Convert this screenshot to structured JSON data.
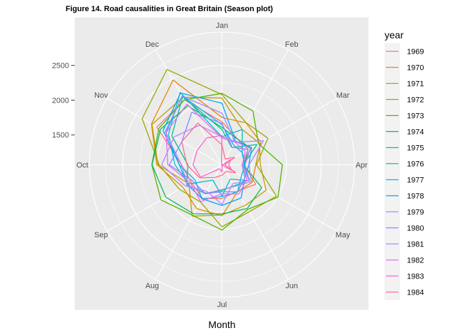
{
  "chart_data": {
    "type": "line",
    "coordinates": "polar",
    "title": "Figure 14. Road causalities in Great Britain (Season plot)",
    "xlabel": "Month",
    "ylabel": "",
    "months": [
      "Jan",
      "Feb",
      "Mar",
      "Apr",
      "May",
      "Jun",
      "Jul",
      "Aug",
      "Sep",
      "Oct",
      "Nov",
      "Dec"
    ],
    "radial_ticks": [
      1500,
      2000,
      2500
    ],
    "rlim": [
      1070,
      2980
    ],
    "legend_title": "year",
    "legend_position": "right",
    "series": [
      {
        "name": "1969",
        "color": "#F8766D",
        "values": [
          1687,
          1508,
          1507,
          1385,
          1632,
          1511,
          1559,
          1630,
          1579,
          1653,
          2152,
          2148
        ]
      },
      {
        "name": "1970",
        "color": "#E38900",
        "values": [
          1752,
          1765,
          1717,
          1558,
          1575,
          1520,
          1805,
          1800,
          1719,
          2008,
          2242,
          2478
        ]
      },
      {
        "name": "1971",
        "color": "#C49A00",
        "values": [
          2030,
          1655,
          1693,
          1623,
          1805,
          1746,
          1795,
          1926,
          1619,
          1992,
          2233,
          2192
        ]
      },
      {
        "name": "1972",
        "color": "#99A800",
        "values": [
          2080,
          1768,
          1835,
          1569,
          1976,
          1853,
          1965,
          1689,
          1778,
          1976,
          2397,
          2654
        ]
      },
      {
        "name": "1973",
        "color": "#53B400",
        "values": [
          2097,
          1963,
          1677,
          1941,
          2003,
          1813,
          2012,
          1912,
          2084,
          2080,
          2118,
          2150
        ]
      },
      {
        "name": "1974",
        "color": "#00BC56",
        "values": [
          1608,
          1503,
          1548,
          1382,
          1731,
          1798,
          1779,
          1887,
          2004,
          2077,
          2092,
          2051
        ]
      },
      {
        "name": "1975",
        "color": "#00C094",
        "values": [
          1577,
          1356,
          1652,
          1382,
          1519,
          1421,
          1442,
          1543,
          1656,
          1561,
          1905,
          2199
        ]
      },
      {
        "name": "1976",
        "color": "#00BFC4",
        "values": [
          1473,
          1655,
          1407,
          1395,
          1530,
          1309,
          1526,
          1327,
          1627,
          1748,
          1958,
          2274
        ]
      },
      {
        "name": "1977",
        "color": "#00B6EB",
        "values": [
          1648,
          1401,
          1411,
          1403,
          1394,
          1520,
          1528,
          1643,
          1515,
          1685,
          2000,
          2215
        ]
      },
      {
        "name": "1978",
        "color": "#06A4FF",
        "values": [
          1956,
          1462,
          1563,
          1459,
          1446,
          1622,
          1657,
          1638,
          1643,
          1683,
          2050,
          2262
        ]
      },
      {
        "name": "1979",
        "color": "#A58AFF",
        "values": [
          1813,
          1445,
          1762,
          1461,
          1556,
          1431,
          1427,
          1554,
          1645,
          1653,
          2016,
          2207
        ]
      },
      {
        "name": "1980",
        "color": "#7F8CFF",
        "values": [
          1665,
          1361,
          1506,
          1360,
          1453,
          1522,
          1460,
          1552,
          1548,
          1827,
          1737,
          1941
        ]
      },
      {
        "name": "1981",
        "color": "#B983FF",
        "values": [
          1474,
          1458,
          1542,
          1404,
          1522,
          1385,
          1641,
          1510,
          1681,
          1938,
          1868,
          1726
        ]
      },
      {
        "name": "1982",
        "color": "#E76BF3",
        "values": [
          1456,
          1445,
          1456,
          1365,
          1487,
          1558,
          1488,
          1684,
          1594,
          1850,
          1998,
          2079
        ]
      },
      {
        "name": "1983",
        "color": "#FF61C9",
        "values": [
          1494,
          1057,
          1218,
          1168,
          1236,
          1076,
          1174,
          1139,
          1427,
          1487,
          1483,
          1513
        ]
      },
      {
        "name": "1984",
        "color": "#FF6C91",
        "values": [
          1357,
          1165,
          1282,
          1110,
          1297,
          1185,
          1222,
          1284,
          1444,
          1575,
          1737,
          1763
        ]
      }
    ]
  }
}
